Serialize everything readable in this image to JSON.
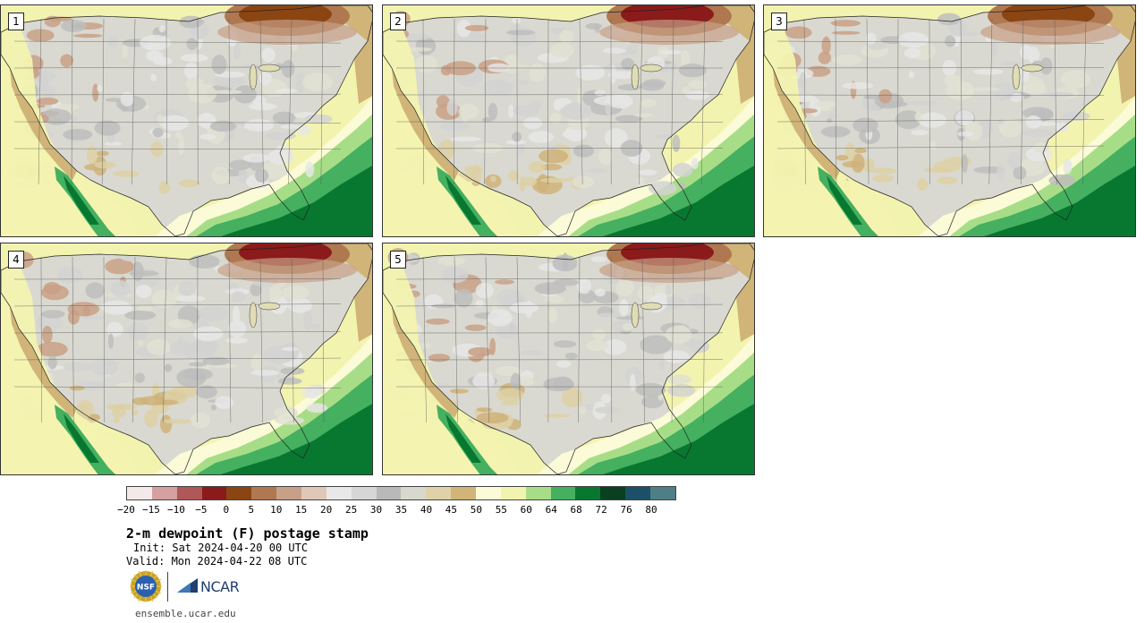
{
  "panels": [
    {
      "number": "1"
    },
    {
      "number": "2"
    },
    {
      "number": "3"
    },
    {
      "number": "4"
    },
    {
      "number": "5"
    }
  ],
  "colorbar": {
    "colors": [
      "#f3e9e9",
      "#d4a0a0",
      "#b05858",
      "#8b1a1a",
      "#8a4512",
      "#b07850",
      "#c8a088",
      "#e0c8b8",
      "#e8e8e8",
      "#d6d6d6",
      "#b9b9b9",
      "#d8d8cc",
      "#e0d2a8",
      "#d0b478",
      "#fbfbd8",
      "#f3f3b0",
      "#a8dd88",
      "#44b060",
      "#087830",
      "#084020",
      "#1c5068",
      "#4e7f86"
    ],
    "ticks": [
      "−20",
      "−15",
      "−10",
      "−5",
      "0",
      "5",
      "10",
      "15",
      "20",
      "25",
      "30",
      "35",
      "40",
      "45",
      "50",
      "55",
      "60",
      "64",
      "68",
      "72",
      "76",
      "80"
    ]
  },
  "title": "2-m dewpoint (F) postage stamp",
  "init": "Init: Sat 2024-04-20 00 UTC",
  "valid": "Valid: Mon 2024-04-22 08 UTC",
  "logos": {
    "nsf_text": "NSF",
    "ncar_text": "NCAR"
  },
  "site": "ensemble.ucar.edu"
}
